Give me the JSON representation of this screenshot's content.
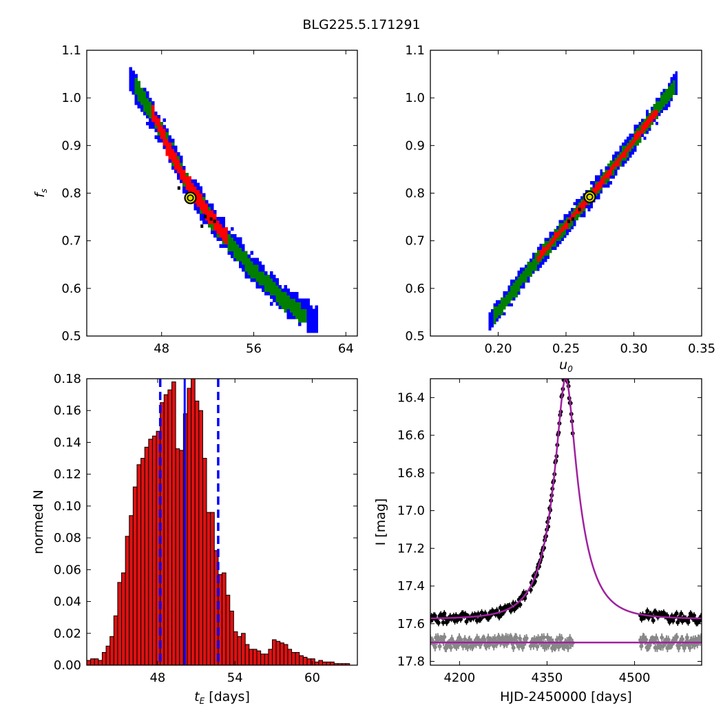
{
  "figure_title": "BLG225.5.171291",
  "colors": {
    "sigma1": "#ff0000",
    "sigma2": "#007f00",
    "sigma3": "#0000ff",
    "best_fit_marker": "#e0e000",
    "hist_bar": "#dd1111",
    "median_line": "#0000ff",
    "model_curve": "#a020a0",
    "data_points": "#000000",
    "residuals": "#888888"
  },
  "chart_data": [
    {
      "id": "tE_fs",
      "type": "heatmap",
      "xlabel": "",
      "ylabel": "f_s",
      "xlim": [
        41.5,
        65
      ],
      "ylim": [
        0.5,
        1.1
      ],
      "xticks": [
        "48",
        "56",
        "64"
      ],
      "yticks": [
        "0.5",
        "0.6",
        "0.7",
        "0.8",
        "0.9",
        "1.0",
        "1.1"
      ],
      "best_fit": {
        "x": 50.5,
        "y": 0.79
      },
      "confidence_regions": [
        {
          "level": "3-sigma",
          "ridge": [
            [
              45.2,
              1.04
            ],
            [
              48.0,
              0.93
            ],
            [
              50.0,
              0.83
            ],
            [
              52.5,
              0.74
            ],
            [
              55.5,
              0.65
            ],
            [
              58.5,
              0.58
            ],
            [
              61.5,
              0.53
            ]
          ],
          "halfwidth_y": 0.028
        },
        {
          "level": "2-sigma",
          "ridge": [
            [
              45.6,
              1.035
            ],
            [
              48.0,
              0.93
            ],
            [
              50.0,
              0.83
            ],
            [
              52.5,
              0.74
            ],
            [
              55.5,
              0.65
            ],
            [
              58.5,
              0.58
            ],
            [
              60.5,
              0.54
            ]
          ],
          "halfwidth_y": 0.018
        },
        {
          "level": "1-sigma",
          "ridge": [
            [
              47.2,
              0.97
            ],
            [
              48.5,
              0.9
            ],
            [
              50.0,
              0.83
            ],
            [
              52.0,
              0.76
            ],
            [
              53.8,
              0.7
            ]
          ],
          "halfwidth_y": 0.016
        }
      ],
      "outlier_points": [
        [
          49.5,
          0.81
        ],
        [
          50.2,
          0.795
        ],
        [
          51.8,
          0.75
        ],
        [
          52.3,
          0.745
        ],
        [
          52.6,
          0.74
        ],
        [
          51.5,
          0.73
        ]
      ]
    },
    {
      "id": "u0_fs",
      "type": "heatmap",
      "xlabel": "u_0",
      "ylabel": "",
      "xlim": [
        0.15,
        0.35
      ],
      "ylim": [
        0.5,
        1.1
      ],
      "xticks": [
        "0.20",
        "0.25",
        "0.30",
        "0.35"
      ],
      "yticks": [
        "0.5",
        "0.6",
        "0.7",
        "0.8",
        "0.9",
        "1.0",
        "1.1"
      ],
      "best_fit": {
        "x": 0.2675,
        "y": 0.792
      },
      "confidence_regions": [
        {
          "level": "3-sigma",
          "ridge": [
            [
              0.193,
              0.53
            ],
            [
              0.23,
              0.665
            ],
            [
              0.2675,
              0.792
            ],
            [
              0.3,
              0.91
            ],
            [
              0.333,
              1.035
            ]
          ],
          "halfwidth_y": 0.022
        },
        {
          "level": "2-sigma",
          "ridge": [
            [
              0.197,
              0.54
            ],
            [
              0.23,
              0.665
            ],
            [
              0.2675,
              0.792
            ],
            [
              0.3,
              0.91
            ],
            [
              0.33,
              1.025
            ]
          ],
          "halfwidth_y": 0.015
        },
        {
          "level": "1-sigma",
          "ridge": [
            [
              0.228,
              0.66
            ],
            [
              0.2675,
              0.792
            ],
            [
              0.318,
              0.975
            ]
          ],
          "halfwidth_y": 0.008
        }
      ],
      "outlier_points": [
        [
          0.252,
          0.74
        ],
        [
          0.255,
          0.745
        ],
        [
          0.26,
          0.765
        ]
      ]
    },
    {
      "id": "tE_hist",
      "type": "bar",
      "xlabel": "t_E [days]",
      "ylabel": "normed N",
      "xlim": [
        42.5,
        63.5
      ],
      "ylim": [
        0.0,
        0.18
      ],
      "xticks": [
        "48",
        "54",
        "60"
      ],
      "yticks": [
        "0.00",
        "0.02",
        "0.04",
        "0.06",
        "0.08",
        "0.10",
        "0.12",
        "0.14",
        "0.16",
        "0.18"
      ],
      "bin_start": 42.5,
      "bin_width": 0.3,
      "values": [
        0.003,
        0.004,
        0.004,
        0.003,
        0.008,
        0.012,
        0.018,
        0.031,
        0.052,
        0.058,
        0.081,
        0.094,
        0.112,
        0.126,
        0.13,
        0.137,
        0.142,
        0.144,
        0.147,
        0.165,
        0.17,
        0.173,
        0.178,
        0.136,
        0.135,
        0.158,
        0.174,
        0.18,
        0.166,
        0.16,
        0.13,
        0.096,
        0.096,
        0.072,
        0.057,
        0.058,
        0.044,
        0.034,
        0.021,
        0.018,
        0.02,
        0.013,
        0.01,
        0.01,
        0.009,
        0.007,
        0.007,
        0.01,
        0.016,
        0.015,
        0.014,
        0.013,
        0.01,
        0.008,
        0.008,
        0.006,
        0.005,
        0.004,
        0.004,
        0.002,
        0.003,
        0.002,
        0.002,
        0.002,
        0.001,
        0.001,
        0.001,
        0.001,
        0.0,
        0.0
      ],
      "median": 50.1,
      "interval": [
        48.2,
        52.7
      ]
    },
    {
      "id": "lightcurve",
      "type": "scatter",
      "xlabel": "HJD-2450000 [days]",
      "ylabel": "I [mag]",
      "xlim": [
        4150,
        4615
      ],
      "ylim": [
        17.82,
        16.3
      ],
      "xticks": [
        "4200",
        "4350",
        "4500"
      ],
      "yticks": [
        "16.4",
        "16.6",
        "16.8",
        "17.0",
        "17.2",
        "17.4",
        "17.6",
        "17.8"
      ],
      "model": {
        "t0": 4382,
        "u0": 0.2675,
        "tE": 50.5,
        "fs": 0.79,
        "I_base": 17.575
      },
      "residual_baseline": 17.7,
      "observing_seasons": [
        [
          4150,
          4315
        ],
        [
          4322,
          4395
        ],
        [
          4510,
          4615
        ]
      ]
    }
  ]
}
